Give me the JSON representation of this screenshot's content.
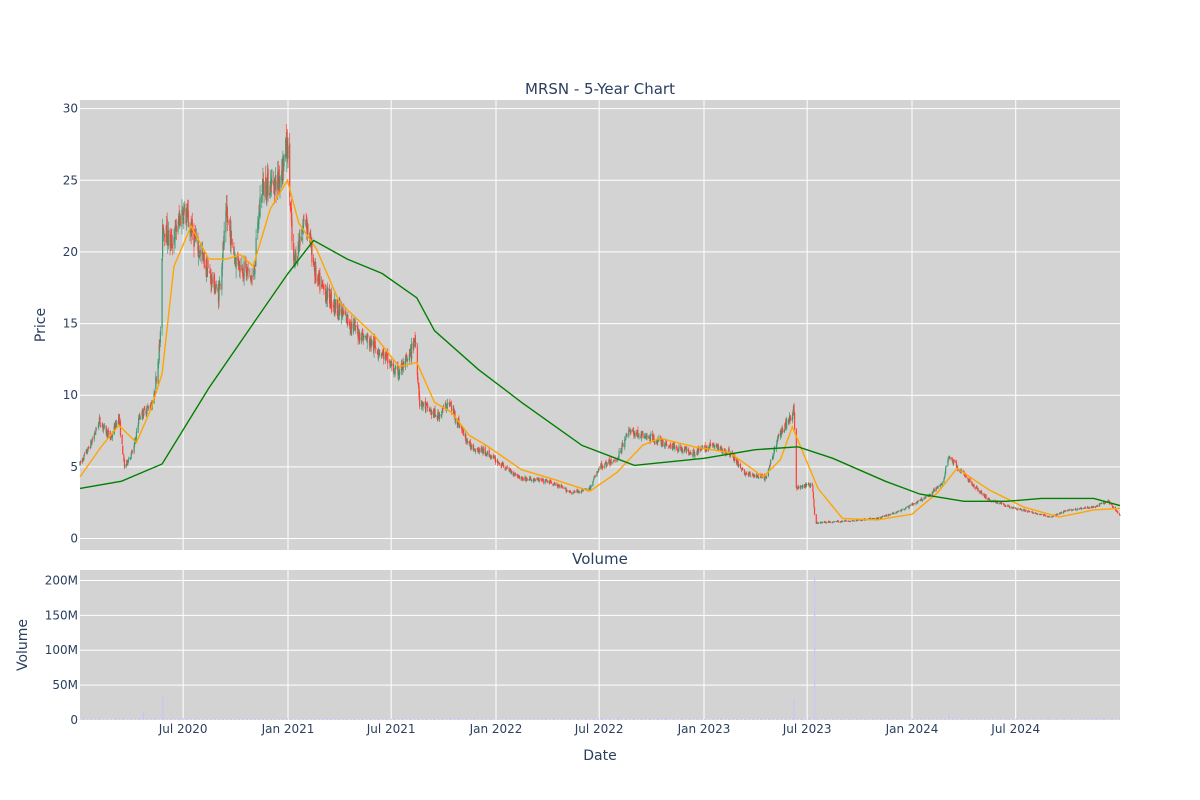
{
  "chart_data": [
    {
      "type": "candlestick",
      "title": "MRSN - 5-Year Chart",
      "ylabel": "Price",
      "ylim": [
        -0.8,
        30.6
      ],
      "yticks": [
        0,
        5,
        10,
        15,
        20,
        25,
        30
      ],
      "x_start": "2020-01-02",
      "x_end": "2024-12-31",
      "grid": true,
      "up_color": "#3d9970",
      "down_color": "#ff4136",
      "keypoints": [
        {
          "date": "2020-01-02",
          "close": 5.2
        },
        {
          "date": "2020-01-20",
          "close": 6.5
        },
        {
          "date": "2020-02-05",
          "close": 8.2
        },
        {
          "date": "2020-02-25",
          "close": 7.0
        },
        {
          "date": "2020-03-10",
          "close": 8.5
        },
        {
          "date": "2020-03-20",
          "close": 5.0
        },
        {
          "date": "2020-04-05",
          "close": 6.2
        },
        {
          "date": "2020-04-15",
          "close": 8.5
        },
        {
          "date": "2020-05-10",
          "close": 9.5
        },
        {
          "date": "2020-05-22",
          "close": 14.0
        },
        {
          "date": "2020-05-26",
          "close": 22.0
        },
        {
          "date": "2020-06-10",
          "close": 20.5
        },
        {
          "date": "2020-07-01",
          "close": 23.0
        },
        {
          "date": "2020-07-20",
          "close": 21.0
        },
        {
          "date": "2020-08-10",
          "close": 19.0
        },
        {
          "date": "2020-09-01",
          "close": 17.0
        },
        {
          "date": "2020-09-15",
          "close": 22.5
        },
        {
          "date": "2020-10-01",
          "close": 19.5
        },
        {
          "date": "2020-11-01",
          "close": 18.0
        },
        {
          "date": "2020-11-15",
          "close": 24.5
        },
        {
          "date": "2020-12-15",
          "close": 25.0
        },
        {
          "date": "2020-12-31",
          "close": 27.5
        },
        {
          "date": "2021-01-10",
          "close": 19.0
        },
        {
          "date": "2021-02-01",
          "close": 22.5
        },
        {
          "date": "2021-02-20",
          "close": 18.0
        },
        {
          "date": "2021-03-20",
          "close": 16.5
        },
        {
          "date": "2021-05-01",
          "close": 14.5
        },
        {
          "date": "2021-06-15",
          "close": 13.0
        },
        {
          "date": "2021-07-10",
          "close": 11.5
        },
        {
          "date": "2021-08-01",
          "close": 12.5
        },
        {
          "date": "2021-08-12",
          "close": 14.0
        },
        {
          "date": "2021-08-20",
          "close": 9.5
        },
        {
          "date": "2021-09-20",
          "close": 8.5
        },
        {
          "date": "2021-10-10",
          "close": 9.5
        },
        {
          "date": "2021-11-15",
          "close": 6.5
        },
        {
          "date": "2021-12-15",
          "close": 6.0
        },
        {
          "date": "2022-01-15",
          "close": 5.0
        },
        {
          "date": "2022-02-15",
          "close": 4.2
        },
        {
          "date": "2022-04-01",
          "close": 4.0
        },
        {
          "date": "2022-05-15",
          "close": 3.2
        },
        {
          "date": "2022-06-15",
          "close": 3.5
        },
        {
          "date": "2022-07-01",
          "close": 5.0
        },
        {
          "date": "2022-08-01",
          "close": 5.5
        },
        {
          "date": "2022-08-20",
          "close": 7.5
        },
        {
          "date": "2022-10-01",
          "close": 7.0
        },
        {
          "date": "2022-11-01",
          "close": 6.5
        },
        {
          "date": "2022-12-15",
          "close": 6.0
        },
        {
          "date": "2023-01-15",
          "close": 6.5
        },
        {
          "date": "2023-02-15",
          "close": 6.0
        },
        {
          "date": "2023-03-15",
          "close": 4.5
        },
        {
          "date": "2023-04-20",
          "close": 4.2
        },
        {
          "date": "2023-05-10",
          "close": 7.0
        },
        {
          "date": "2023-05-25",
          "close": 8.0
        },
        {
          "date": "2023-06-08",
          "close": 9.0
        },
        {
          "date": "2023-06-12",
          "close": 3.5
        },
        {
          "date": "2023-07-10",
          "close": 3.8
        },
        {
          "date": "2023-07-15",
          "close": 1.1
        },
        {
          "date": "2023-09-01",
          "close": 1.2
        },
        {
          "date": "2023-11-01",
          "close": 1.4
        },
        {
          "date": "2023-12-15",
          "close": 2.0
        },
        {
          "date": "2024-02-01",
          "close": 3.0
        },
        {
          "date": "2024-02-25",
          "close": 4.0
        },
        {
          "date": "2024-03-05",
          "close": 5.8
        },
        {
          "date": "2024-03-20",
          "close": 5.0
        },
        {
          "date": "2024-04-15",
          "close": 3.8
        },
        {
          "date": "2024-05-15",
          "close": 2.7
        },
        {
          "date": "2024-07-01",
          "close": 2.1
        },
        {
          "date": "2024-09-01",
          "close": 1.5
        },
        {
          "date": "2024-10-01",
          "close": 2.0
        },
        {
          "date": "2024-11-15",
          "close": 2.2
        },
        {
          "date": "2024-12-10",
          "close": 2.6
        },
        {
          "date": "2024-12-31",
          "close": 1.6
        }
      ],
      "series": [
        {
          "name": "",
          "color": "#ffa500",
          "points": [
            {
              "date": "2020-01-02",
              "value": 4.3
            },
            {
              "date": "2020-02-10",
              "value": 6.5
            },
            {
              "date": "2020-03-10",
              "value": 7.9
            },
            {
              "date": "2020-04-10",
              "value": 6.7
            },
            {
              "date": "2020-05-05",
              "value": 9.0
            },
            {
              "date": "2020-05-25",
              "value": 11.5
            },
            {
              "date": "2020-06-15",
              "value": 19.0
            },
            {
              "date": "2020-07-15",
              "value": 21.8
            },
            {
              "date": "2020-08-15",
              "value": 19.5
            },
            {
              "date": "2020-09-15",
              "value": 19.5
            },
            {
              "date": "2020-10-10",
              "value": 19.8
            },
            {
              "date": "2020-11-01",
              "value": 19.0
            },
            {
              "date": "2020-12-01",
              "value": 23.0
            },
            {
              "date": "2020-12-31",
              "value": 25.0
            },
            {
              "date": "2021-01-20",
              "value": 22.0
            },
            {
              "date": "2021-02-20",
              "value": 20.2
            },
            {
              "date": "2021-04-01",
              "value": 16.5
            },
            {
              "date": "2021-06-01",
              "value": 14.2
            },
            {
              "date": "2021-07-15",
              "value": 12.0
            },
            {
              "date": "2021-08-15",
              "value": 12.3
            },
            {
              "date": "2021-09-15",
              "value": 9.5
            },
            {
              "date": "2021-10-15",
              "value": 8.8
            },
            {
              "date": "2021-11-15",
              "value": 7.2
            },
            {
              "date": "2021-12-15",
              "value": 6.5
            },
            {
              "date": "2022-02-15",
              "value": 4.8
            },
            {
              "date": "2022-04-15",
              "value": 4.1
            },
            {
              "date": "2022-06-15",
              "value": 3.3
            },
            {
              "date": "2022-08-01",
              "value": 4.6
            },
            {
              "date": "2022-09-15",
              "value": 6.5
            },
            {
              "date": "2022-10-15",
              "value": 7.0
            },
            {
              "date": "2022-12-15",
              "value": 6.4
            },
            {
              "date": "2023-02-15",
              "value": 6.0
            },
            {
              "date": "2023-04-15",
              "value": 4.3
            },
            {
              "date": "2023-05-15",
              "value": 5.5
            },
            {
              "date": "2023-06-05",
              "value": 7.8
            },
            {
              "date": "2023-07-20",
              "value": 3.5
            },
            {
              "date": "2023-09-01",
              "value": 1.4
            },
            {
              "date": "2023-11-01",
              "value": 1.3
            },
            {
              "date": "2024-01-01",
              "value": 1.7
            },
            {
              "date": "2024-02-15",
              "value": 3.2
            },
            {
              "date": "2024-03-20",
              "value": 4.9
            },
            {
              "date": "2024-05-15",
              "value": 3.4
            },
            {
              "date": "2024-07-15",
              "value": 2.2
            },
            {
              "date": "2024-09-15",
              "value": 1.5
            },
            {
              "date": "2024-11-15",
              "value": 2.0
            },
            {
              "date": "2024-12-31",
              "value": 2.1
            }
          ]
        },
        {
          "name": "",
          "color": "#008000",
          "points": [
            {
              "date": "2020-01-02",
              "value": 3.5
            },
            {
              "date": "2020-03-15",
              "value": 4.0
            },
            {
              "date": "2020-05-25",
              "value": 5.2
            },
            {
              "date": "2020-08-15",
              "value": 10.5
            },
            {
              "date": "2020-11-01",
              "value": 15.0
            },
            {
              "date": "2021-01-01",
              "value": 18.5
            },
            {
              "date": "2021-02-15",
              "value": 20.8
            },
            {
              "date": "2021-04-15",
              "value": 19.5
            },
            {
              "date": "2021-06-15",
              "value": 18.5
            },
            {
              "date": "2021-08-15",
              "value": 16.8
            },
            {
              "date": "2021-09-15",
              "value": 14.5
            },
            {
              "date": "2021-12-01",
              "value": 11.8
            },
            {
              "date": "2022-02-15",
              "value": 9.5
            },
            {
              "date": "2022-06-01",
              "value": 6.5
            },
            {
              "date": "2022-09-01",
              "value": 5.1
            },
            {
              "date": "2023-01-01",
              "value": 5.6
            },
            {
              "date": "2023-04-01",
              "value": 6.2
            },
            {
              "date": "2023-06-15",
              "value": 6.4
            },
            {
              "date": "2023-08-15",
              "value": 5.6
            },
            {
              "date": "2023-11-15",
              "value": 4.0
            },
            {
              "date": "2024-01-15",
              "value": 3.1
            },
            {
              "date": "2024-04-01",
              "value": 2.6
            },
            {
              "date": "2024-06-15",
              "value": 2.6
            },
            {
              "date": "2024-08-15",
              "value": 2.8
            },
            {
              "date": "2024-11-15",
              "value": 2.8
            },
            {
              "date": "2024-12-31",
              "value": 2.3
            }
          ]
        }
      ]
    },
    {
      "type": "bar",
      "title": "Volume",
      "xlabel": "Date",
      "ylabel": "Volume",
      "ylim": [
        0,
        215000000
      ],
      "yticks": [
        0,
        50000000,
        100000000,
        150000000,
        200000000
      ],
      "ytick_labels": [
        "0",
        "50M",
        "100M",
        "150M",
        "200M"
      ],
      "bar_color": "#c8c8f0",
      "baseline_volume": 1500000,
      "spikes": [
        {
          "date": "2020-04-22",
          "value": 12000000
        },
        {
          "date": "2020-05-26",
          "value": 35000000
        },
        {
          "date": "2022-08-05",
          "value": 6000000
        },
        {
          "date": "2023-06-08",
          "value": 30000000
        },
        {
          "date": "2023-07-14",
          "value": 205000000
        },
        {
          "date": "2024-03-06",
          "value": 8000000
        }
      ],
      "xticks": [
        {
          "date": "2020-07-01",
          "label": "Jul 2020"
        },
        {
          "date": "2021-01-01",
          "label": "Jan 2021"
        },
        {
          "date": "2021-07-01",
          "label": "Jul 2021"
        },
        {
          "date": "2022-01-01",
          "label": "Jan 2022"
        },
        {
          "date": "2022-07-01",
          "label": "Jul 2022"
        },
        {
          "date": "2023-01-01",
          "label": "Jan 2023"
        },
        {
          "date": "2023-07-01",
          "label": "Jul 2023"
        },
        {
          "date": "2024-01-01",
          "label": "Jan 2024"
        },
        {
          "date": "2024-07-01",
          "label": "Jul 2024"
        }
      ]
    }
  ]
}
